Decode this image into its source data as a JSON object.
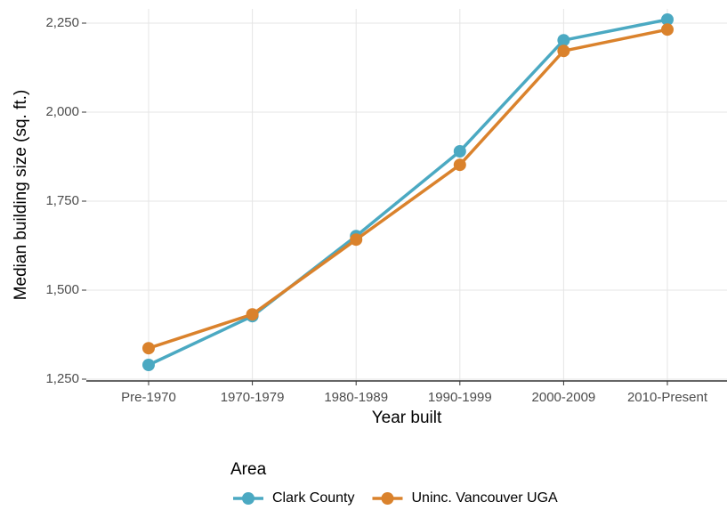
{
  "chart_data": {
    "type": "line",
    "x_label": "Year built",
    "y_label": "Median building size (sq. ft.)",
    "categories": [
      "Pre-1970",
      "1970-1979",
      "1980-1989",
      "1990-1999",
      "2000-2009",
      "2010-Present"
    ],
    "series": [
      {
        "name": "Clark County",
        "color": "#4ba9c2",
        "values": [
          1290,
          1427,
          1652,
          1890,
          2202,
          2260
        ]
      },
      {
        "name": "Uninc. Vancouver UGA",
        "color": "#da822c",
        "values": [
          1337,
          1432,
          1642,
          1852,
          2172,
          2232
        ]
      }
    ],
    "ylim": [
      1245,
      2290
    ],
    "yticks": [
      {
        "value": 1250,
        "label": "1,250"
      },
      {
        "value": 1500,
        "label": "1,500"
      },
      {
        "value": 1750,
        "label": "1,750"
      },
      {
        "value": 2000,
        "label": "2,000"
      },
      {
        "value": 2250,
        "label": "2,250"
      }
    ],
    "grid": true,
    "legend_title": "Area",
    "legend_position": "bottom"
  }
}
